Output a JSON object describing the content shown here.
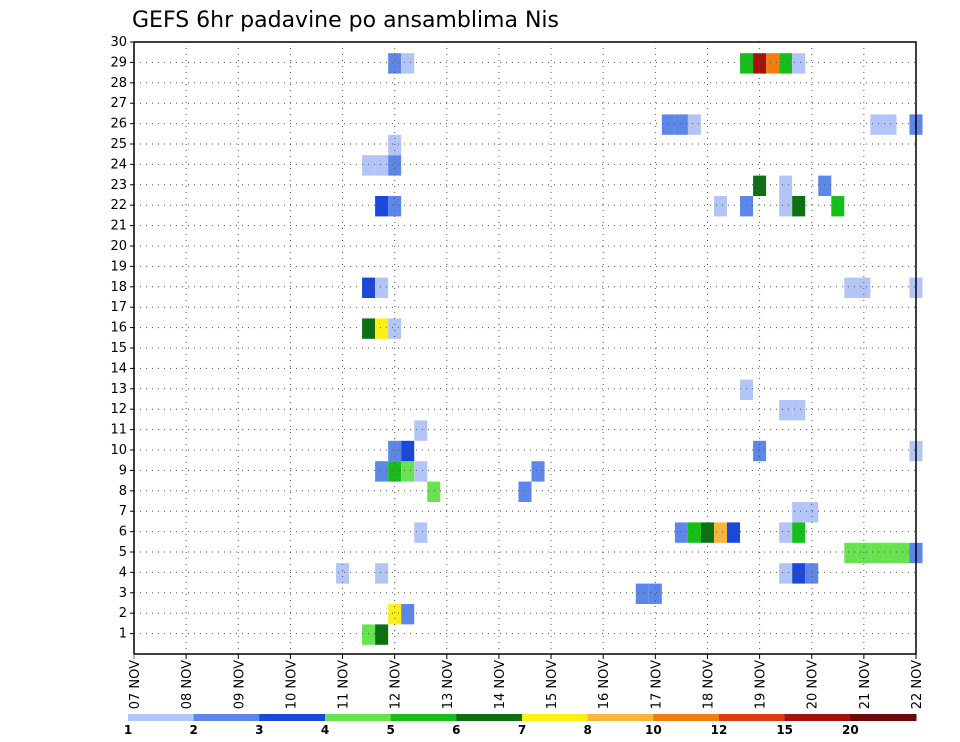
{
  "chart_data": {
    "type": "heatmap",
    "title": "GEFS 6hr padavine po ansamblima Nis",
    "xlabel": "",
    "ylabel": "",
    "x_tick_labels": [
      "07 NOV",
      "08 NOV",
      "09 NOV",
      "10 NOV",
      "11 NOV",
      "12 NOV",
      "13 NOV",
      "14 NOV",
      "15 NOV",
      "16 NOV",
      "17 NOV",
      "18 NOV",
      "19 NOV",
      "20 NOV",
      "21 NOV",
      "22 NOV"
    ],
    "x_range_days": [
      7,
      22
    ],
    "y_tick_labels": [
      "1",
      "2",
      "3",
      "4",
      "5",
      "6",
      "7",
      "8",
      "9",
      "10",
      "11",
      "12",
      "13",
      "14",
      "15",
      "16",
      "17",
      "18",
      "19",
      "20",
      "21",
      "22",
      "23",
      "24",
      "25",
      "26",
      "27",
      "28",
      "29",
      "30"
    ],
    "y_range": [
      0,
      30
    ],
    "grid": true,
    "colorbar": {
      "placement": "bottom",
      "tick_labels": [
        "1",
        "2",
        "3",
        "4",
        "5",
        "6",
        "7",
        "8",
        "10",
        "12",
        "15",
        "20"
      ],
      "colors": [
        "#b3c5f7",
        "#5d86ea",
        "#1a47dc",
        "#66e34f",
        "#15bf1a",
        "#0e7012",
        "#fff013",
        "#f9b43e",
        "#f27e13",
        "#e03b0c",
        "#a8100d",
        "#6e0808"
      ]
    },
    "cells": [
      {
        "day": 11.5,
        "slot": 0,
        "color": "#66e34f"
      },
      {
        "day": 11.75,
        "slot": 0,
        "color": "#0e7012"
      },
      {
        "day": 12.0,
        "slot": 1,
        "color": "#fff013"
      },
      {
        "day": 12.25,
        "slot": 1,
        "color": "#5d86ea"
      },
      {
        "day": 16.75,
        "slot": 2,
        "color": "#5d86ea"
      },
      {
        "day": 17.0,
        "slot": 2,
        "color": "#5d86ea"
      },
      {
        "day": 11.0,
        "slot": 3,
        "color": "#b3c5f7"
      },
      {
        "day": 11.75,
        "slot": 3,
        "color": "#b3c5f7"
      },
      {
        "day": 19.5,
        "slot": 3,
        "color": "#b3c5f7"
      },
      {
        "day": 19.75,
        "slot": 3,
        "color": "#1a47dc"
      },
      {
        "day": 20.0,
        "slot": 3,
        "color": "#5d86ea"
      },
      {
        "day": 20.75,
        "slot": 4,
        "color": "#66e34f"
      },
      {
        "day": 21.0,
        "slot": 4,
        "color": "#66e34f"
      },
      {
        "day": 21.25,
        "slot": 4,
        "color": "#66e34f"
      },
      {
        "day": 21.5,
        "slot": 4,
        "color": "#66e34f"
      },
      {
        "day": 21.75,
        "slot": 4,
        "color": "#66e34f"
      },
      {
        "day": 22.0,
        "slot": 4,
        "color": "#5d86ea"
      },
      {
        "day": 12.5,
        "slot": 5,
        "color": "#b3c5f7"
      },
      {
        "day": 17.5,
        "slot": 5,
        "color": "#5d86ea"
      },
      {
        "day": 17.75,
        "slot": 5,
        "color": "#15bf1a"
      },
      {
        "day": 18.0,
        "slot": 5,
        "color": "#0e7012"
      },
      {
        "day": 18.25,
        "slot": 5,
        "color": "#f9b43e"
      },
      {
        "day": 18.5,
        "slot": 5,
        "color": "#1a47dc"
      },
      {
        "day": 19.5,
        "slot": 5,
        "color": "#b3c5f7"
      },
      {
        "day": 19.75,
        "slot": 5,
        "color": "#15bf1a"
      },
      {
        "day": 19.75,
        "slot": 6,
        "color": "#b3c5f7"
      },
      {
        "day": 20.0,
        "slot": 6,
        "color": "#b3c5f7"
      },
      {
        "day": 12.75,
        "slot": 7,
        "color": "#66e34f"
      },
      {
        "day": 14.5,
        "slot": 7,
        "color": "#5d86ea"
      },
      {
        "day": 11.75,
        "slot": 8,
        "color": "#5d86ea"
      },
      {
        "day": 12.0,
        "slot": 8,
        "color": "#15bf1a"
      },
      {
        "day": 12.25,
        "slot": 8,
        "color": "#66e34f"
      },
      {
        "day": 12.5,
        "slot": 8,
        "color": "#b3c5f7"
      },
      {
        "day": 14.75,
        "slot": 8,
        "color": "#5d86ea"
      },
      {
        "day": 12.0,
        "slot": 9,
        "color": "#5d86ea"
      },
      {
        "day": 12.25,
        "slot": 9,
        "color": "#1a47dc"
      },
      {
        "day": 19.0,
        "slot": 9,
        "color": "#5d86ea"
      },
      {
        "day": 22.0,
        "slot": 9,
        "color": "#b3c5f7"
      },
      {
        "day": 12.5,
        "slot": 10,
        "color": "#b3c5f7"
      },
      {
        "day": 19.5,
        "slot": 11,
        "color": "#b3c5f7"
      },
      {
        "day": 19.75,
        "slot": 11,
        "color": "#b3c5f7"
      },
      {
        "day": 18.75,
        "slot": 12,
        "color": "#b3c5f7"
      },
      {
        "day": 11.5,
        "slot": 15,
        "color": "#0e7012"
      },
      {
        "day": 11.75,
        "slot": 15,
        "color": "#fff013"
      },
      {
        "day": 12.0,
        "slot": 15,
        "color": "#b3c5f7"
      },
      {
        "day": 11.5,
        "slot": 17,
        "color": "#1a47dc"
      },
      {
        "day": 11.75,
        "slot": 17,
        "color": "#b3c5f7"
      },
      {
        "day": 20.75,
        "slot": 17,
        "color": "#b3c5f7"
      },
      {
        "day": 21.0,
        "slot": 17,
        "color": "#b3c5f7"
      },
      {
        "day": 22.0,
        "slot": 17,
        "color": "#b3c5f7"
      },
      {
        "day": 11.75,
        "slot": 21,
        "color": "#1a47dc"
      },
      {
        "day": 12.0,
        "slot": 21,
        "color": "#5d86ea"
      },
      {
        "day": 18.25,
        "slot": 21,
        "color": "#b3c5f7"
      },
      {
        "day": 18.75,
        "slot": 21,
        "color": "#5d86ea"
      },
      {
        "day": 19.5,
        "slot": 21,
        "color": "#b3c5f7"
      },
      {
        "day": 19.75,
        "slot": 21,
        "color": "#0e7012"
      },
      {
        "day": 20.5,
        "slot": 21,
        "color": "#15bf1a"
      },
      {
        "day": 19.0,
        "slot": 22,
        "color": "#0e7012"
      },
      {
        "day": 19.5,
        "slot": 22,
        "color": "#b3c5f7"
      },
      {
        "day": 20.25,
        "slot": 22,
        "color": "#5d86ea"
      },
      {
        "day": 11.5,
        "slot": 23,
        "color": "#b3c5f7"
      },
      {
        "day": 11.75,
        "slot": 23,
        "color": "#b3c5f7"
      },
      {
        "day": 12.0,
        "slot": 23,
        "color": "#5d86ea"
      },
      {
        "day": 12.0,
        "slot": 24,
        "color": "#b3c5f7"
      },
      {
        "day": 17.25,
        "slot": 25,
        "color": "#5d86ea"
      },
      {
        "day": 17.5,
        "slot": 25,
        "color": "#5d86ea"
      },
      {
        "day": 17.75,
        "slot": 25,
        "color": "#b3c5f7"
      },
      {
        "day": 21.25,
        "slot": 25,
        "color": "#b3c5f7"
      },
      {
        "day": 21.5,
        "slot": 25,
        "color": "#b3c5f7"
      },
      {
        "day": 22.0,
        "slot": 25,
        "color": "#5d86ea"
      },
      {
        "day": 12.0,
        "slot": 28,
        "color": "#5d86ea"
      },
      {
        "day": 12.25,
        "slot": 28,
        "color": "#b3c5f7"
      },
      {
        "day": 18.75,
        "slot": 28,
        "color": "#15bf1a"
      },
      {
        "day": 19.0,
        "slot": 28,
        "color": "#a8100d"
      },
      {
        "day": 19.25,
        "slot": 28,
        "color": "#f27e13"
      },
      {
        "day": 19.5,
        "slot": 28,
        "color": "#15bf1a"
      },
      {
        "day": 19.75,
        "slot": 28,
        "color": "#b3c5f7"
      }
    ]
  }
}
